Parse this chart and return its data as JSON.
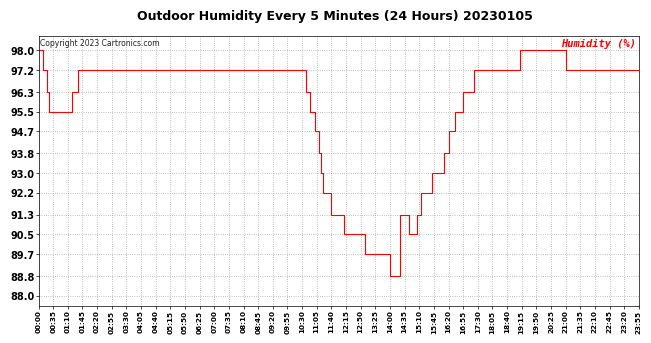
{
  "title": "Outdoor Humidity Every 5 Minutes (24 Hours) 20230105",
  "ylabel": "Humidity (%)",
  "copyright_text": "Copyright 2023 Cartronics.com",
  "line_color": "#ff0000",
  "bg_color": "#ffffff",
  "grid_color": "#999999",
  "yticks": [
    88.0,
    88.8,
    89.7,
    90.5,
    91.3,
    92.2,
    93.0,
    93.8,
    94.7,
    95.5,
    96.3,
    97.2,
    98.0
  ],
  "ylim": [
    87.6,
    98.6
  ],
  "humidity_values": [
    98.0,
    98.0,
    97.2,
    97.2,
    96.3,
    95.5,
    95.5,
    95.5,
    95.5,
    95.5,
    95.5,
    95.5,
    95.5,
    95.5,
    95.5,
    95.5,
    96.3,
    96.3,
    96.3,
    97.2,
    97.2,
    97.2,
    97.2,
    97.2,
    97.2,
    97.2,
    97.2,
    97.2,
    97.2,
    97.2,
    97.2,
    97.2,
    97.2,
    97.2,
    97.2,
    97.2,
    97.2,
    97.2,
    97.2,
    97.2,
    97.2,
    97.2,
    97.2,
    97.2,
    97.2,
    97.2,
    97.2,
    97.2,
    97.2,
    97.2,
    97.2,
    97.2,
    97.2,
    97.2,
    97.2,
    97.2,
    97.2,
    97.2,
    97.2,
    97.2,
    97.2,
    97.2,
    97.2,
    97.2,
    97.2,
    97.2,
    97.2,
    97.2,
    97.2,
    97.2,
    97.2,
    97.2,
    97.2,
    97.2,
    97.2,
    97.2,
    97.2,
    97.2,
    97.2,
    97.2,
    97.2,
    97.2,
    97.2,
    97.2,
    97.2,
    97.2,
    97.2,
    97.2,
    97.2,
    97.2,
    97.2,
    97.2,
    97.2,
    97.2,
    97.2,
    97.2,
    97.2,
    97.2,
    97.2,
    97.2,
    97.2,
    97.2,
    97.2,
    97.2,
    97.2,
    97.2,
    97.2,
    97.2,
    97.2,
    97.2,
    97.2,
    97.2,
    97.2,
    97.2,
    97.2,
    97.2,
    97.2,
    97.2,
    97.2,
    97.2,
    97.2,
    97.2,
    97.2,
    97.2,
    97.2,
    97.2,
    97.2,
    97.2,
    96.3,
    96.3,
    95.5,
    95.5,
    94.7,
    94.7,
    93.8,
    93.0,
    92.2,
    92.2,
    92.2,
    92.2,
    91.3,
    91.3,
    91.3,
    91.3,
    91.3,
    91.3,
    90.5,
    90.5,
    90.5,
    90.5,
    90.5,
    90.5,
    90.5,
    90.5,
    90.5,
    90.5,
    89.7,
    89.7,
    89.7,
    89.7,
    89.7,
    89.7,
    89.7,
    89.7,
    89.7,
    89.7,
    89.7,
    89.7,
    88.8,
    88.8,
    88.8,
    88.8,
    88.8,
    91.3,
    91.3,
    91.3,
    91.3,
    90.5,
    90.5,
    90.5,
    90.5,
    91.3,
    91.3,
    92.2,
    92.2,
    92.2,
    92.2,
    92.2,
    93.0,
    93.0,
    93.0,
    93.0,
    93.0,
    93.0,
    93.8,
    93.8,
    94.7,
    94.7,
    94.7,
    95.5,
    95.5,
    95.5,
    95.5,
    96.3,
    96.3,
    96.3,
    96.3,
    96.3,
    97.2,
    97.2,
    97.2,
    97.2,
    97.2,
    97.2,
    97.2,
    97.2,
    97.2,
    97.2,
    97.2,
    97.2,
    97.2,
    97.2,
    97.2,
    97.2,
    97.2,
    97.2,
    97.2,
    97.2,
    97.2,
    97.2,
    98.0,
    98.0,
    98.0,
    98.0,
    98.0,
    98.0,
    98.0,
    98.0,
    98.0,
    98.0,
    98.0,
    98.0,
    98.0,
    98.0,
    98.0,
    98.0,
    98.0,
    98.0,
    98.0,
    98.0,
    98.0,
    98.0,
    97.2,
    97.2,
    97.2,
    97.2,
    97.2,
    97.2,
    97.2,
    97.2,
    97.2,
    97.2,
    97.2,
    97.2,
    97.2,
    97.2,
    97.2,
    97.2,
    97.2,
    97.2,
    97.2,
    97.2,
    97.2,
    97.2,
    97.2,
    97.2,
    97.2,
    97.2,
    97.2,
    97.2,
    97.2,
    97.2,
    97.2,
    97.2,
    97.2,
    97.2,
    97.2,
    97.2
  ]
}
